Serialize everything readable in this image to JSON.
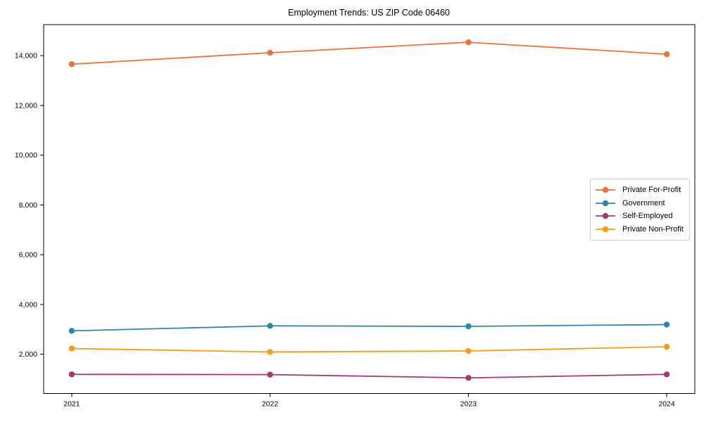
{
  "title": "Employment Trends: US ZIP Code 06460",
  "chart_data": {
    "type": "line",
    "title": "Employment Trends: US ZIP Code 06460",
    "xlabel": "",
    "ylabel": "",
    "x": [
      2021,
      2022,
      2023,
      2024
    ],
    "xtick_labels": [
      "2021",
      "2022",
      "2023",
      "2024"
    ],
    "yticks": [
      2000,
      4000,
      6000,
      8000,
      10000,
      12000,
      14000
    ],
    "ytick_labels": [
      "2,000",
      "4,000",
      "6,000",
      "8,000",
      "10,000",
      "12,000",
      "14,000"
    ],
    "ylim": [
      420,
      15250
    ],
    "grid": false,
    "marker": "circle",
    "legend_position": "center-right",
    "series": [
      {
        "name": "Private For-Profit",
        "color": "#e8743b",
        "values": [
          13660,
          14120,
          14540,
          14060
        ]
      },
      {
        "name": "Government",
        "color": "#2e86ab",
        "values": [
          2940,
          3140,
          3120,
          3190
        ]
      },
      {
        "name": "Self-Employed",
        "color": "#a23b72",
        "values": [
          1190,
          1180,
          1050,
          1190
        ]
      },
      {
        "name": "Private Non-Profit",
        "color": "#f49c1a",
        "values": [
          2230,
          2090,
          2130,
          2300
        ]
      }
    ],
    "axis_color": "#000000",
    "legend_border_color": "#cccccc"
  }
}
